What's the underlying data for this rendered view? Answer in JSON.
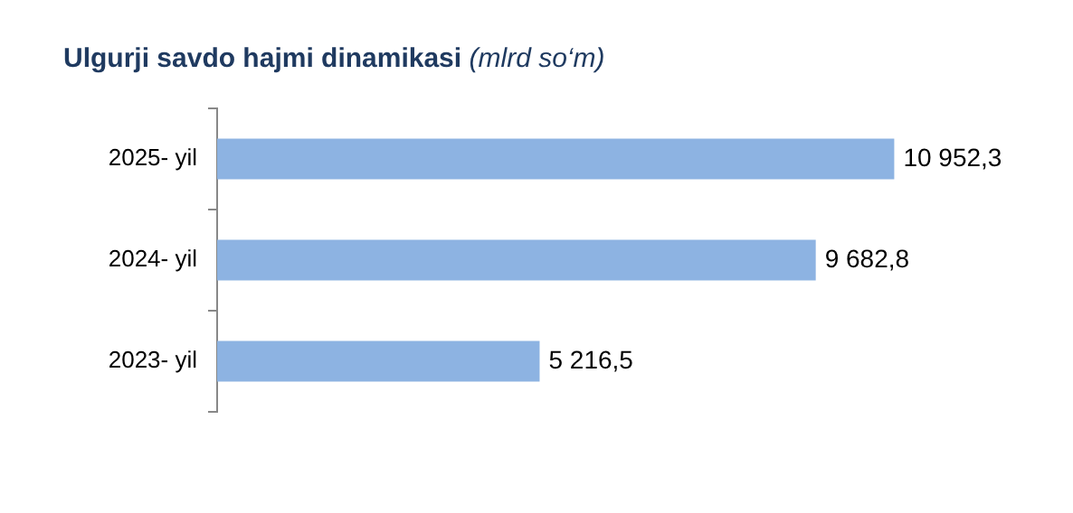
{
  "chart_data": {
    "type": "bar",
    "orientation": "horizontal",
    "title": "Ulgurji savdo hajmi dinamikasi",
    "subtitle": "(mlrd so‘m)",
    "categories": [
      "2025- yil",
      "2024- yil",
      "2023- yil"
    ],
    "values": [
      10952.3,
      9682.8,
      5216.5
    ],
    "value_labels": [
      "10 952,3",
      "9 682,8",
      "5 216,5"
    ],
    "color": "#8db3e2",
    "legend": false
  }
}
